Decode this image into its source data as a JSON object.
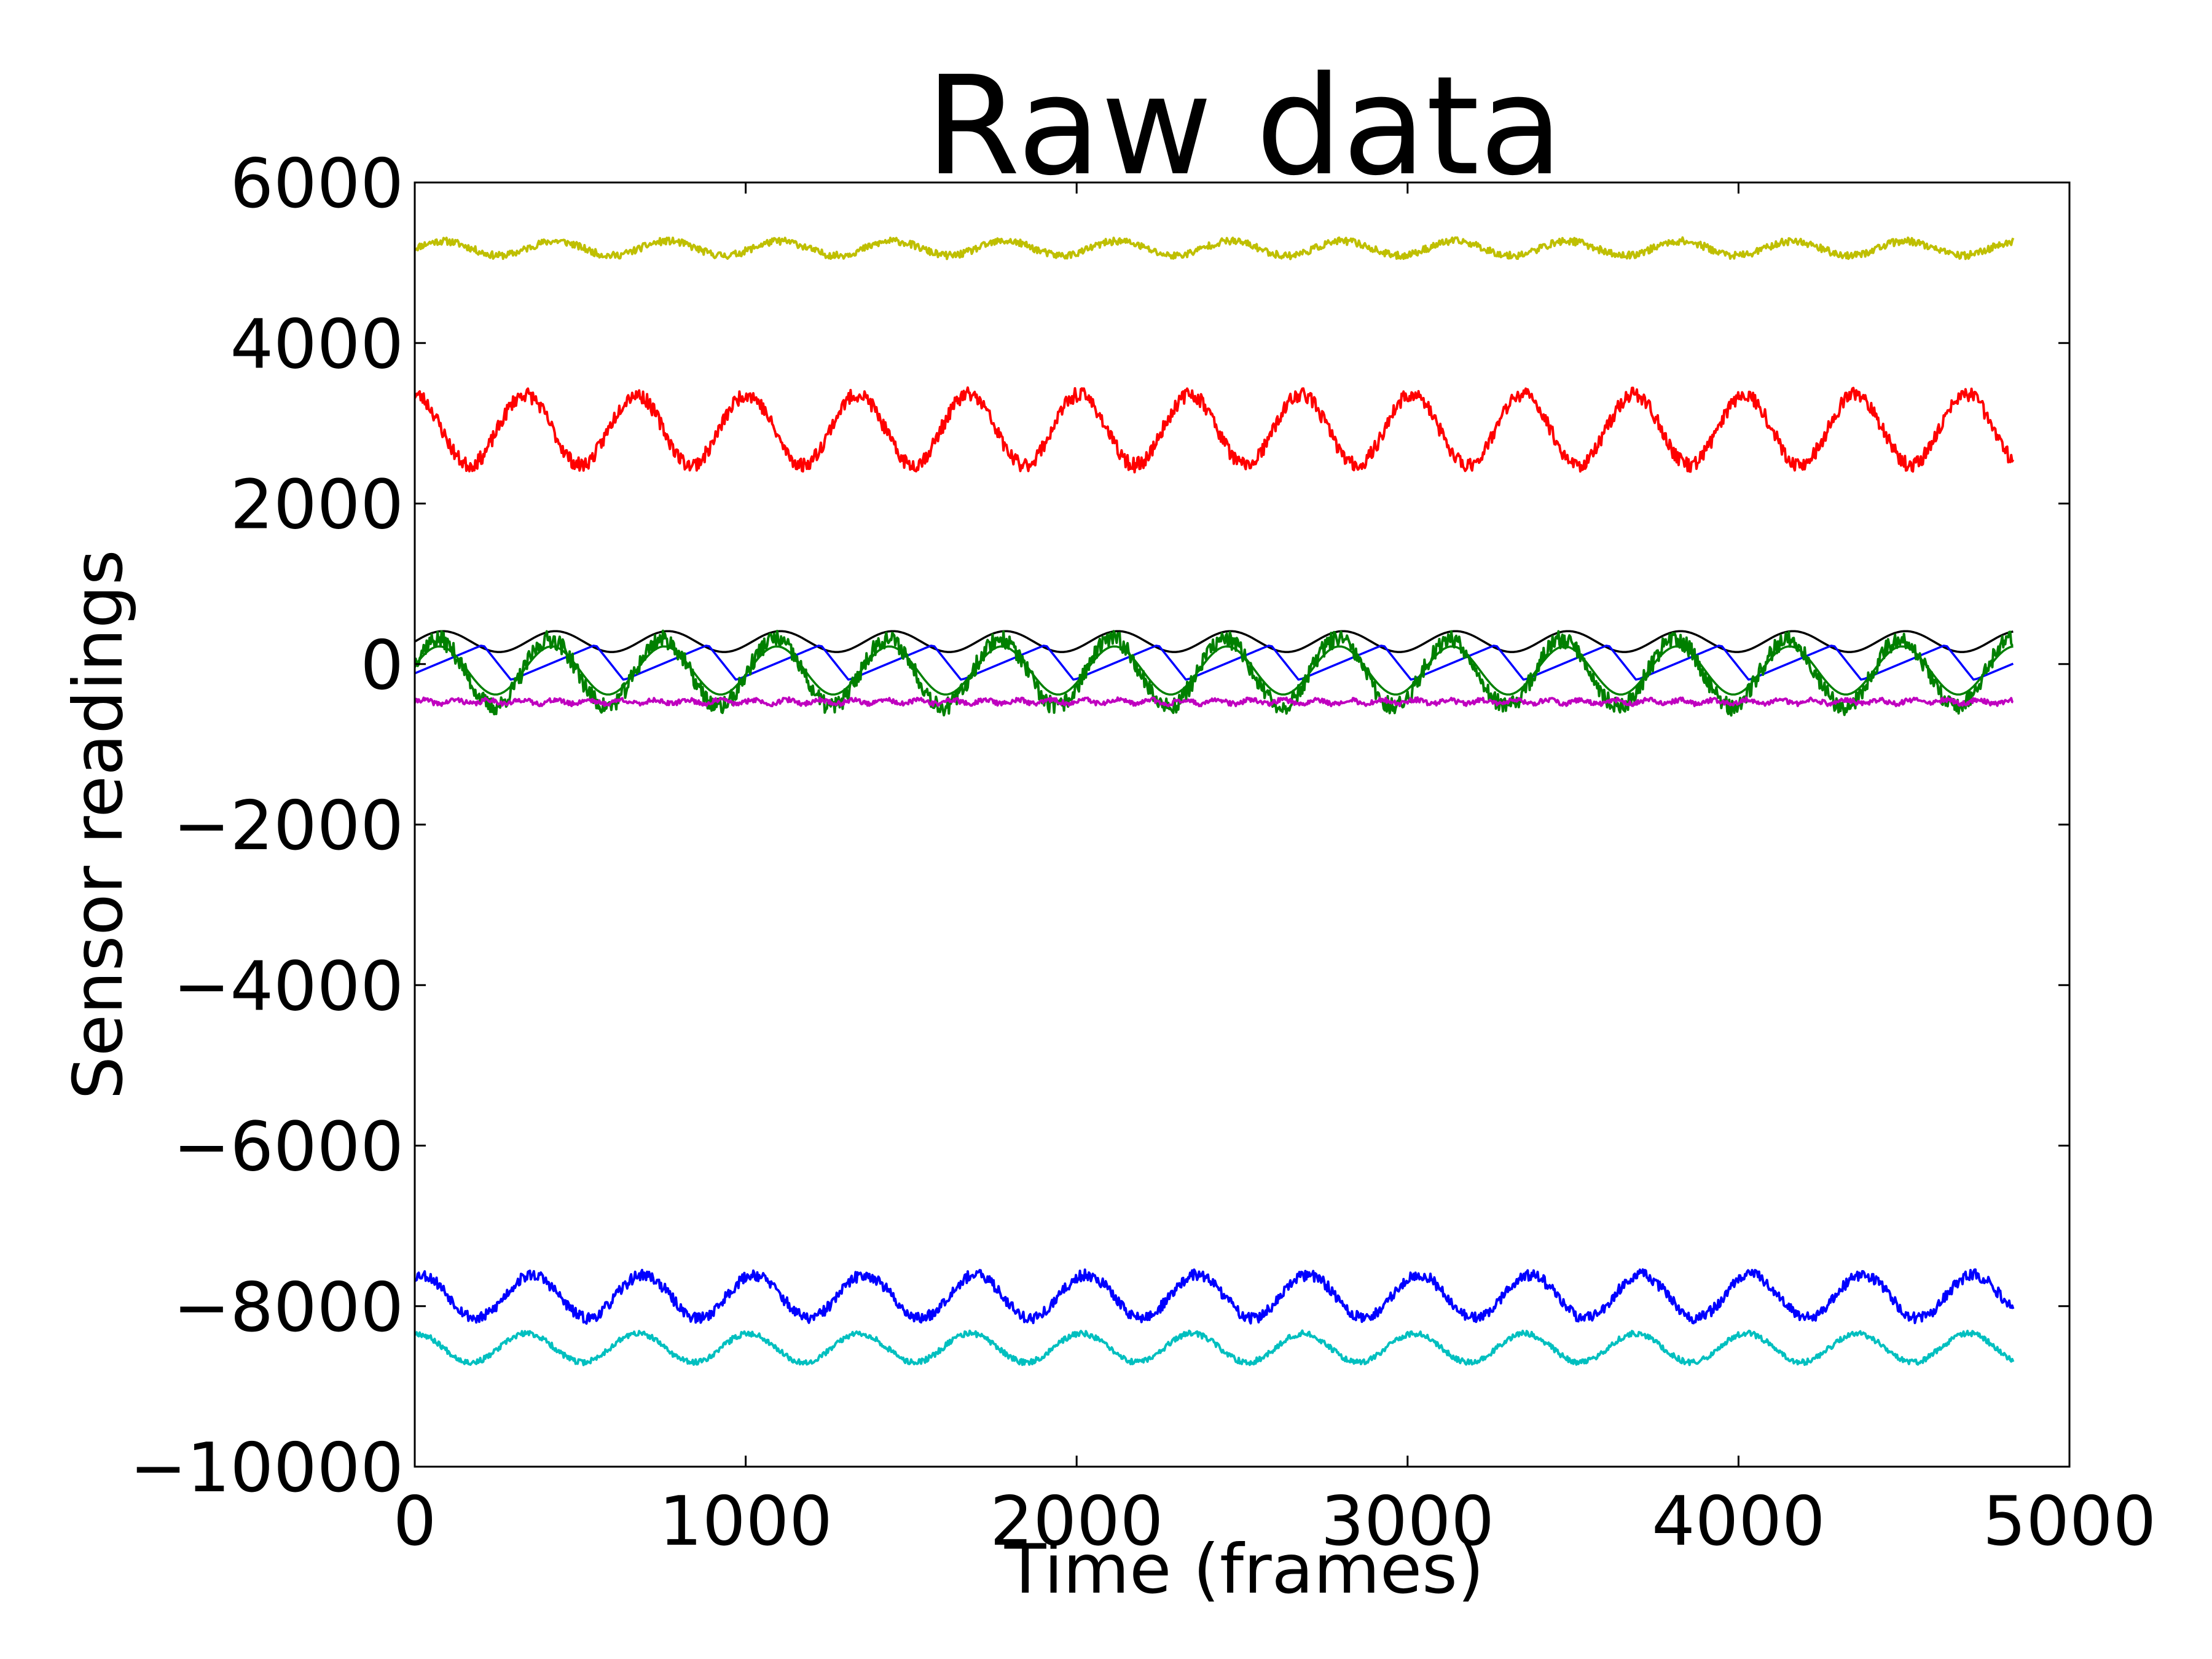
{
  "chart_data": {
    "type": "line",
    "title": "Raw data",
    "xlabel": "Time (frames)",
    "ylabel": "Sensor readings",
    "xlim": [
      0,
      5000
    ],
    "ylim": [
      -10000,
      6000
    ],
    "xticks": [
      "0",
      "1000",
      "2000",
      "3000",
      "4000",
      "5000"
    ],
    "yticks": [
      "6000",
      "4000",
      "2000",
      "0",
      "−2000",
      "−4000",
      "−6000",
      "−8000",
      "−10000"
    ],
    "xtick_values": [
      0,
      1000,
      2000,
      3000,
      4000,
      5000
    ],
    "ytick_values": [
      6000,
      4000,
      2000,
      0,
      -2000,
      -4000,
      -6000,
      -8000,
      -10000
    ],
    "grid": false,
    "x_end": 4830,
    "series": [
      {
        "color": "#bfbf00",
        "offset": 5180,
        "amplitude": 90,
        "period": 340,
        "phase": 0.0,
        "noise": 45,
        "seed": 11
      },
      {
        "color": "#ff0000",
        "offset": 2920,
        "amplitude": 440,
        "period": 335,
        "phase": 1.6,
        "noise": 90,
        "seed": 23
      },
      {
        "color": "#000000",
        "offset": 280,
        "amplitude": 130,
        "period": 340,
        "phase": 0.0,
        "noise": 0,
        "seed": 0
      },
      {
        "color": "#0000ff",
        "offset": 20,
        "amplitude": 220,
        "period": 340,
        "phase": 0.9,
        "noise": 0,
        "seed": 0,
        "shape": "saw"
      },
      {
        "color": "#008000",
        "offset": -80,
        "amplitude": 300,
        "period": 340,
        "phase": 0.2,
        "noise": 0,
        "seed": 0
      },
      {
        "color": "#008000",
        "offset": -110,
        "amplitude": 420,
        "period": 340,
        "phase": 0.3,
        "noise": 110,
        "seed": 37
      },
      {
        "color": "#bf00bf",
        "offset": -470,
        "amplitude": 25,
        "period": 100,
        "phase": 0.0,
        "noise": 30,
        "seed": 41
      },
      {
        "color": "#0000ff",
        "offset": -7880,
        "amplitude": 270,
        "period": 335,
        "phase": 1.2,
        "noise": 70,
        "seed": 53
      },
      {
        "color": "#00bfbf",
        "offset": -8520,
        "amplitude": 180,
        "period": 335,
        "phase": 1.5,
        "noise": 35,
        "seed": 67
      }
    ]
  }
}
